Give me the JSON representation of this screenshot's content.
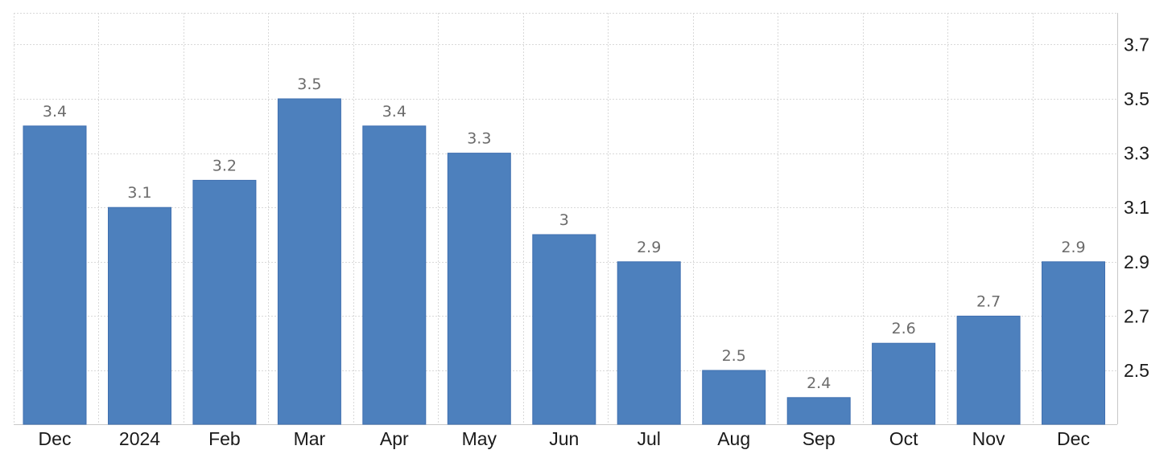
{
  "chart_data": {
    "type": "bar",
    "title": "",
    "xlabel": "",
    "ylabel": "",
    "categories": [
      "Dec",
      "2024",
      "Feb",
      "Mar",
      "Apr",
      "May",
      "Jun",
      "Jul",
      "Aug",
      "Sep",
      "Oct",
      "Nov",
      "Dec"
    ],
    "values": [
      3.4,
      3.1,
      3.2,
      3.5,
      3.4,
      3.3,
      3,
      2.9,
      2.5,
      2.4,
      2.6,
      2.7,
      2.9
    ],
    "data_labels": [
      "3.4",
      "3.1",
      "3.2",
      "3.5",
      "3.4",
      "3.3",
      "3",
      "2.9",
      "2.5",
      "2.4",
      "2.6",
      "2.7",
      "2.9"
    ],
    "y_ticks": [
      "2.5",
      "2.7",
      "2.9",
      "3.1",
      "3.3",
      "3.5",
      "3.7"
    ],
    "y_tick_values": [
      2.5,
      2.7,
      2.9,
      3.1,
      3.3,
      3.5,
      3.7
    ],
    "ylim": [
      2.3,
      3.8
    ],
    "y_axis_side": "right",
    "grid": true,
    "legend": "none",
    "bar_color": "#4d80bd"
  }
}
